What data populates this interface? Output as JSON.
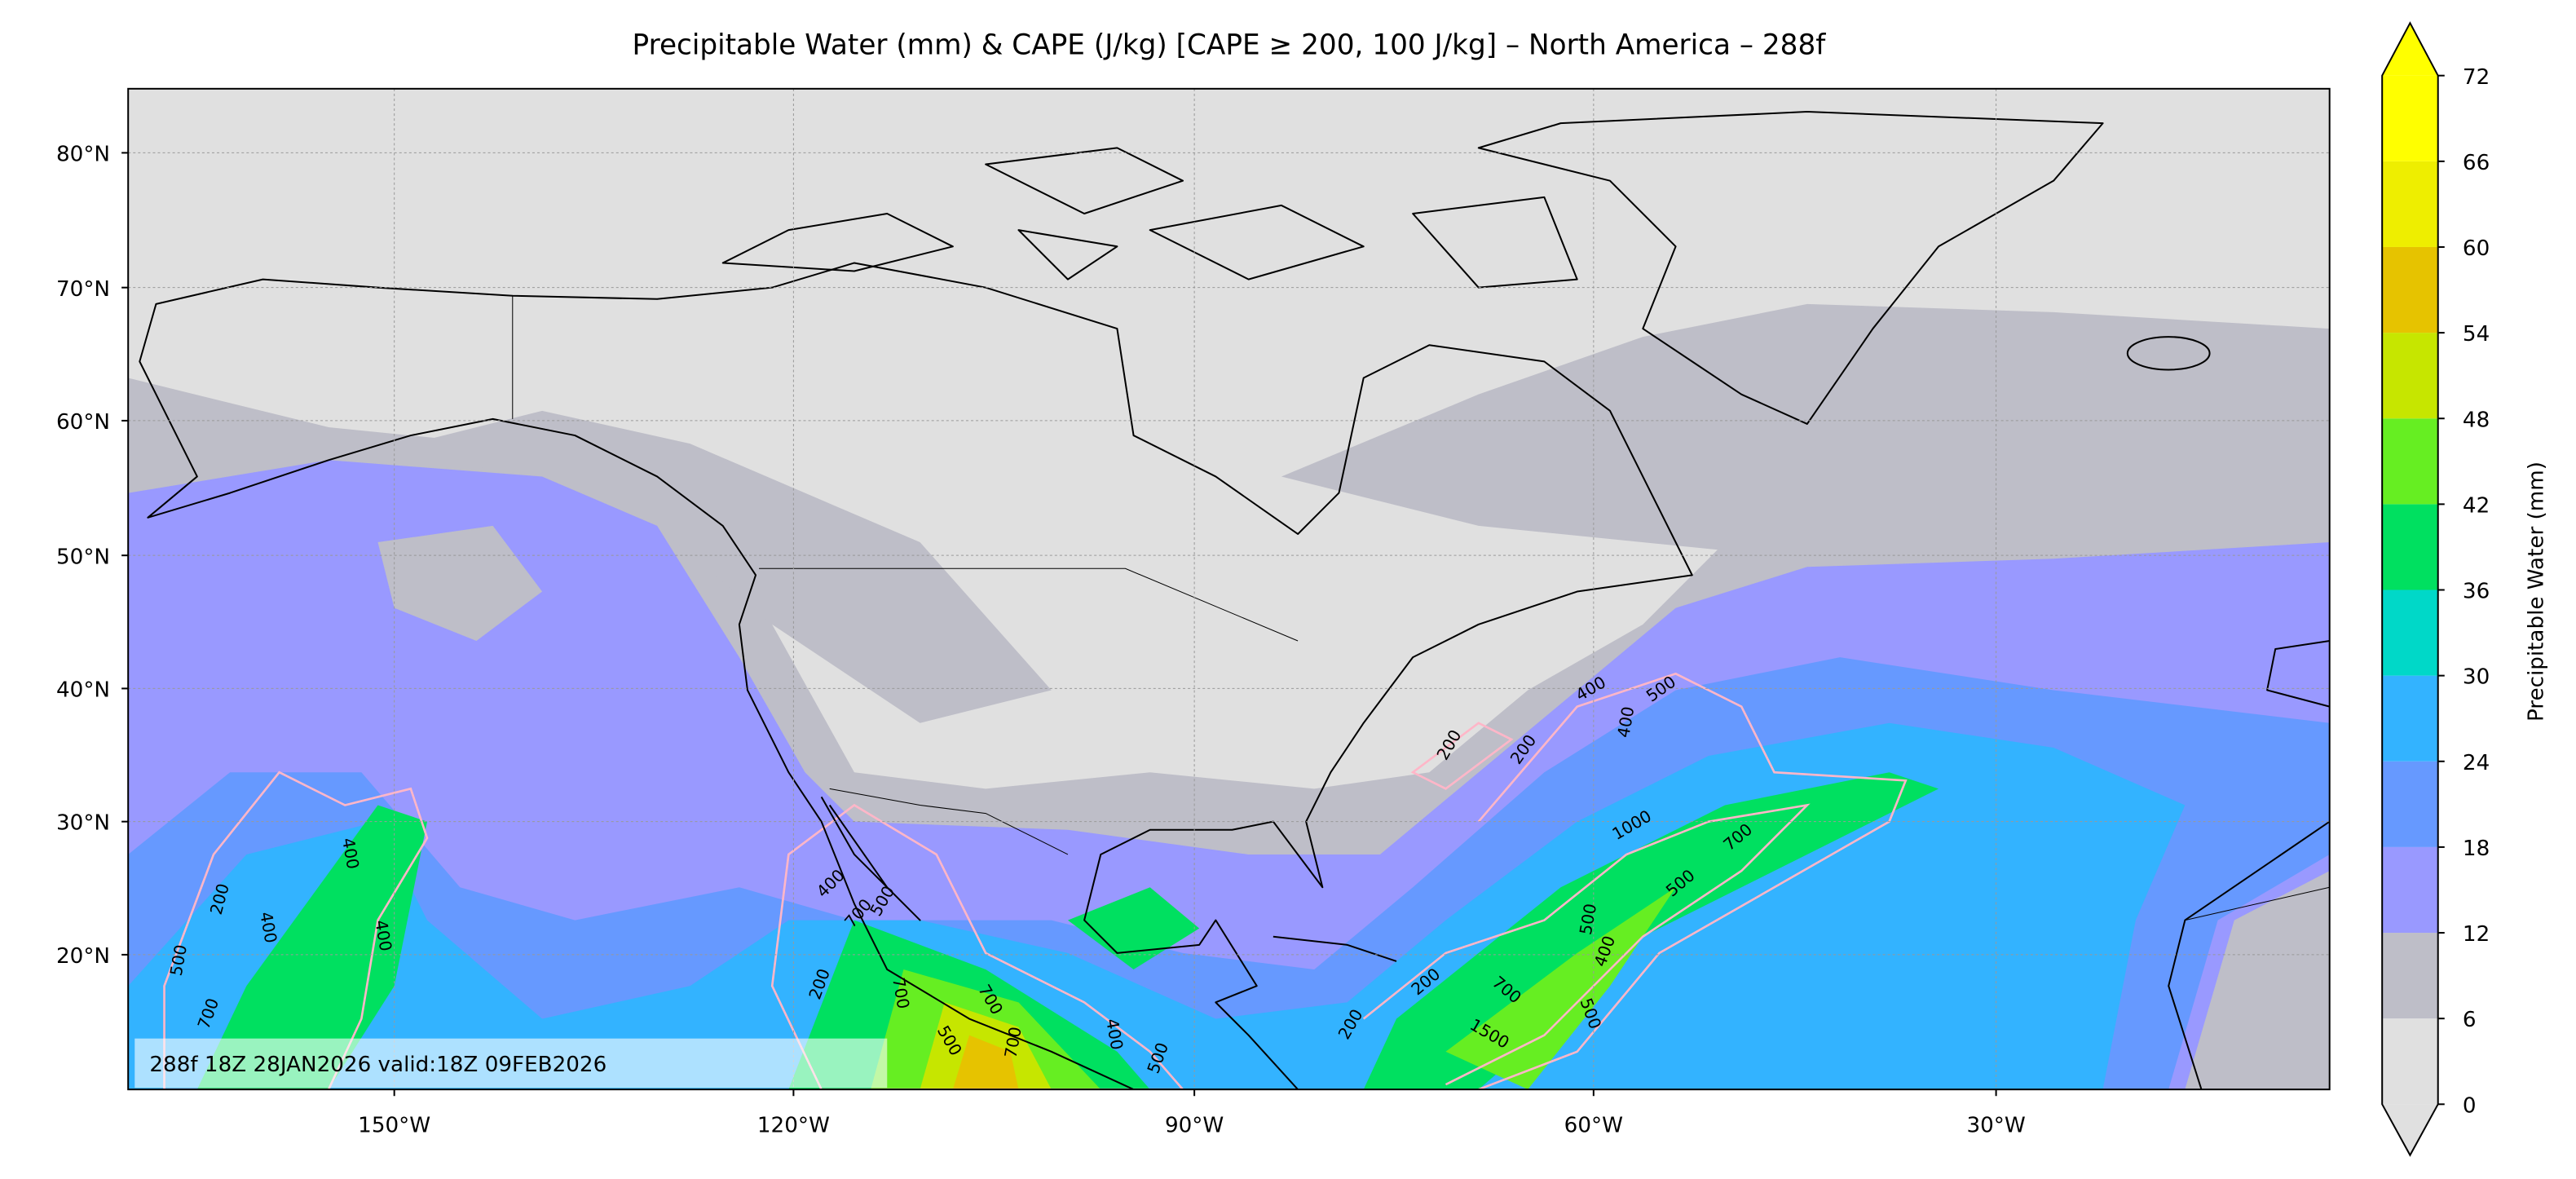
{
  "title": "Precipitable Water (mm) & CAPE (J/kg) [CAPE ≥ 200, 100 J/kg] – North America – 288f",
  "map": {
    "lat_labels": [
      "80°N",
      "70°N",
      "60°N",
      "50°N",
      "40°N",
      "30°N",
      "20°N"
    ],
    "lon_labels": [
      "150°W",
      "120°W",
      "90°W",
      "60°W",
      "30°W"
    ],
    "contour_labels": [
      "200",
      "200",
      "400",
      "400",
      "500",
      "1000",
      "700",
      "500",
      "700",
      "400",
      "500",
      "400",
      "400",
      "400",
      "200",
      "700",
      "500",
      "400",
      "700",
      "500",
      "700",
      "200",
      "200",
      "700",
      "200",
      "1500",
      "500",
      "700",
      "500",
      "400",
      "500"
    ]
  },
  "colorbar": {
    "label": "Precipitable Water (mm)",
    "ticks": [
      0,
      6,
      12,
      18,
      24,
      30,
      36,
      42,
      48,
      54,
      60,
      66,
      72
    ],
    "colors": [
      "#e0e0e0",
      "#bebec8",
      "#9999ff",
      "#6699ff",
      "#33b3ff",
      "#00d8c8",
      "#00e060",
      "#66ee22",
      "#c6e600",
      "#e6c300",
      "#eeee00",
      "#ffff00"
    ]
  },
  "info": "288f 18Z 28JAN2026 valid:18Z 09FEB2026"
}
